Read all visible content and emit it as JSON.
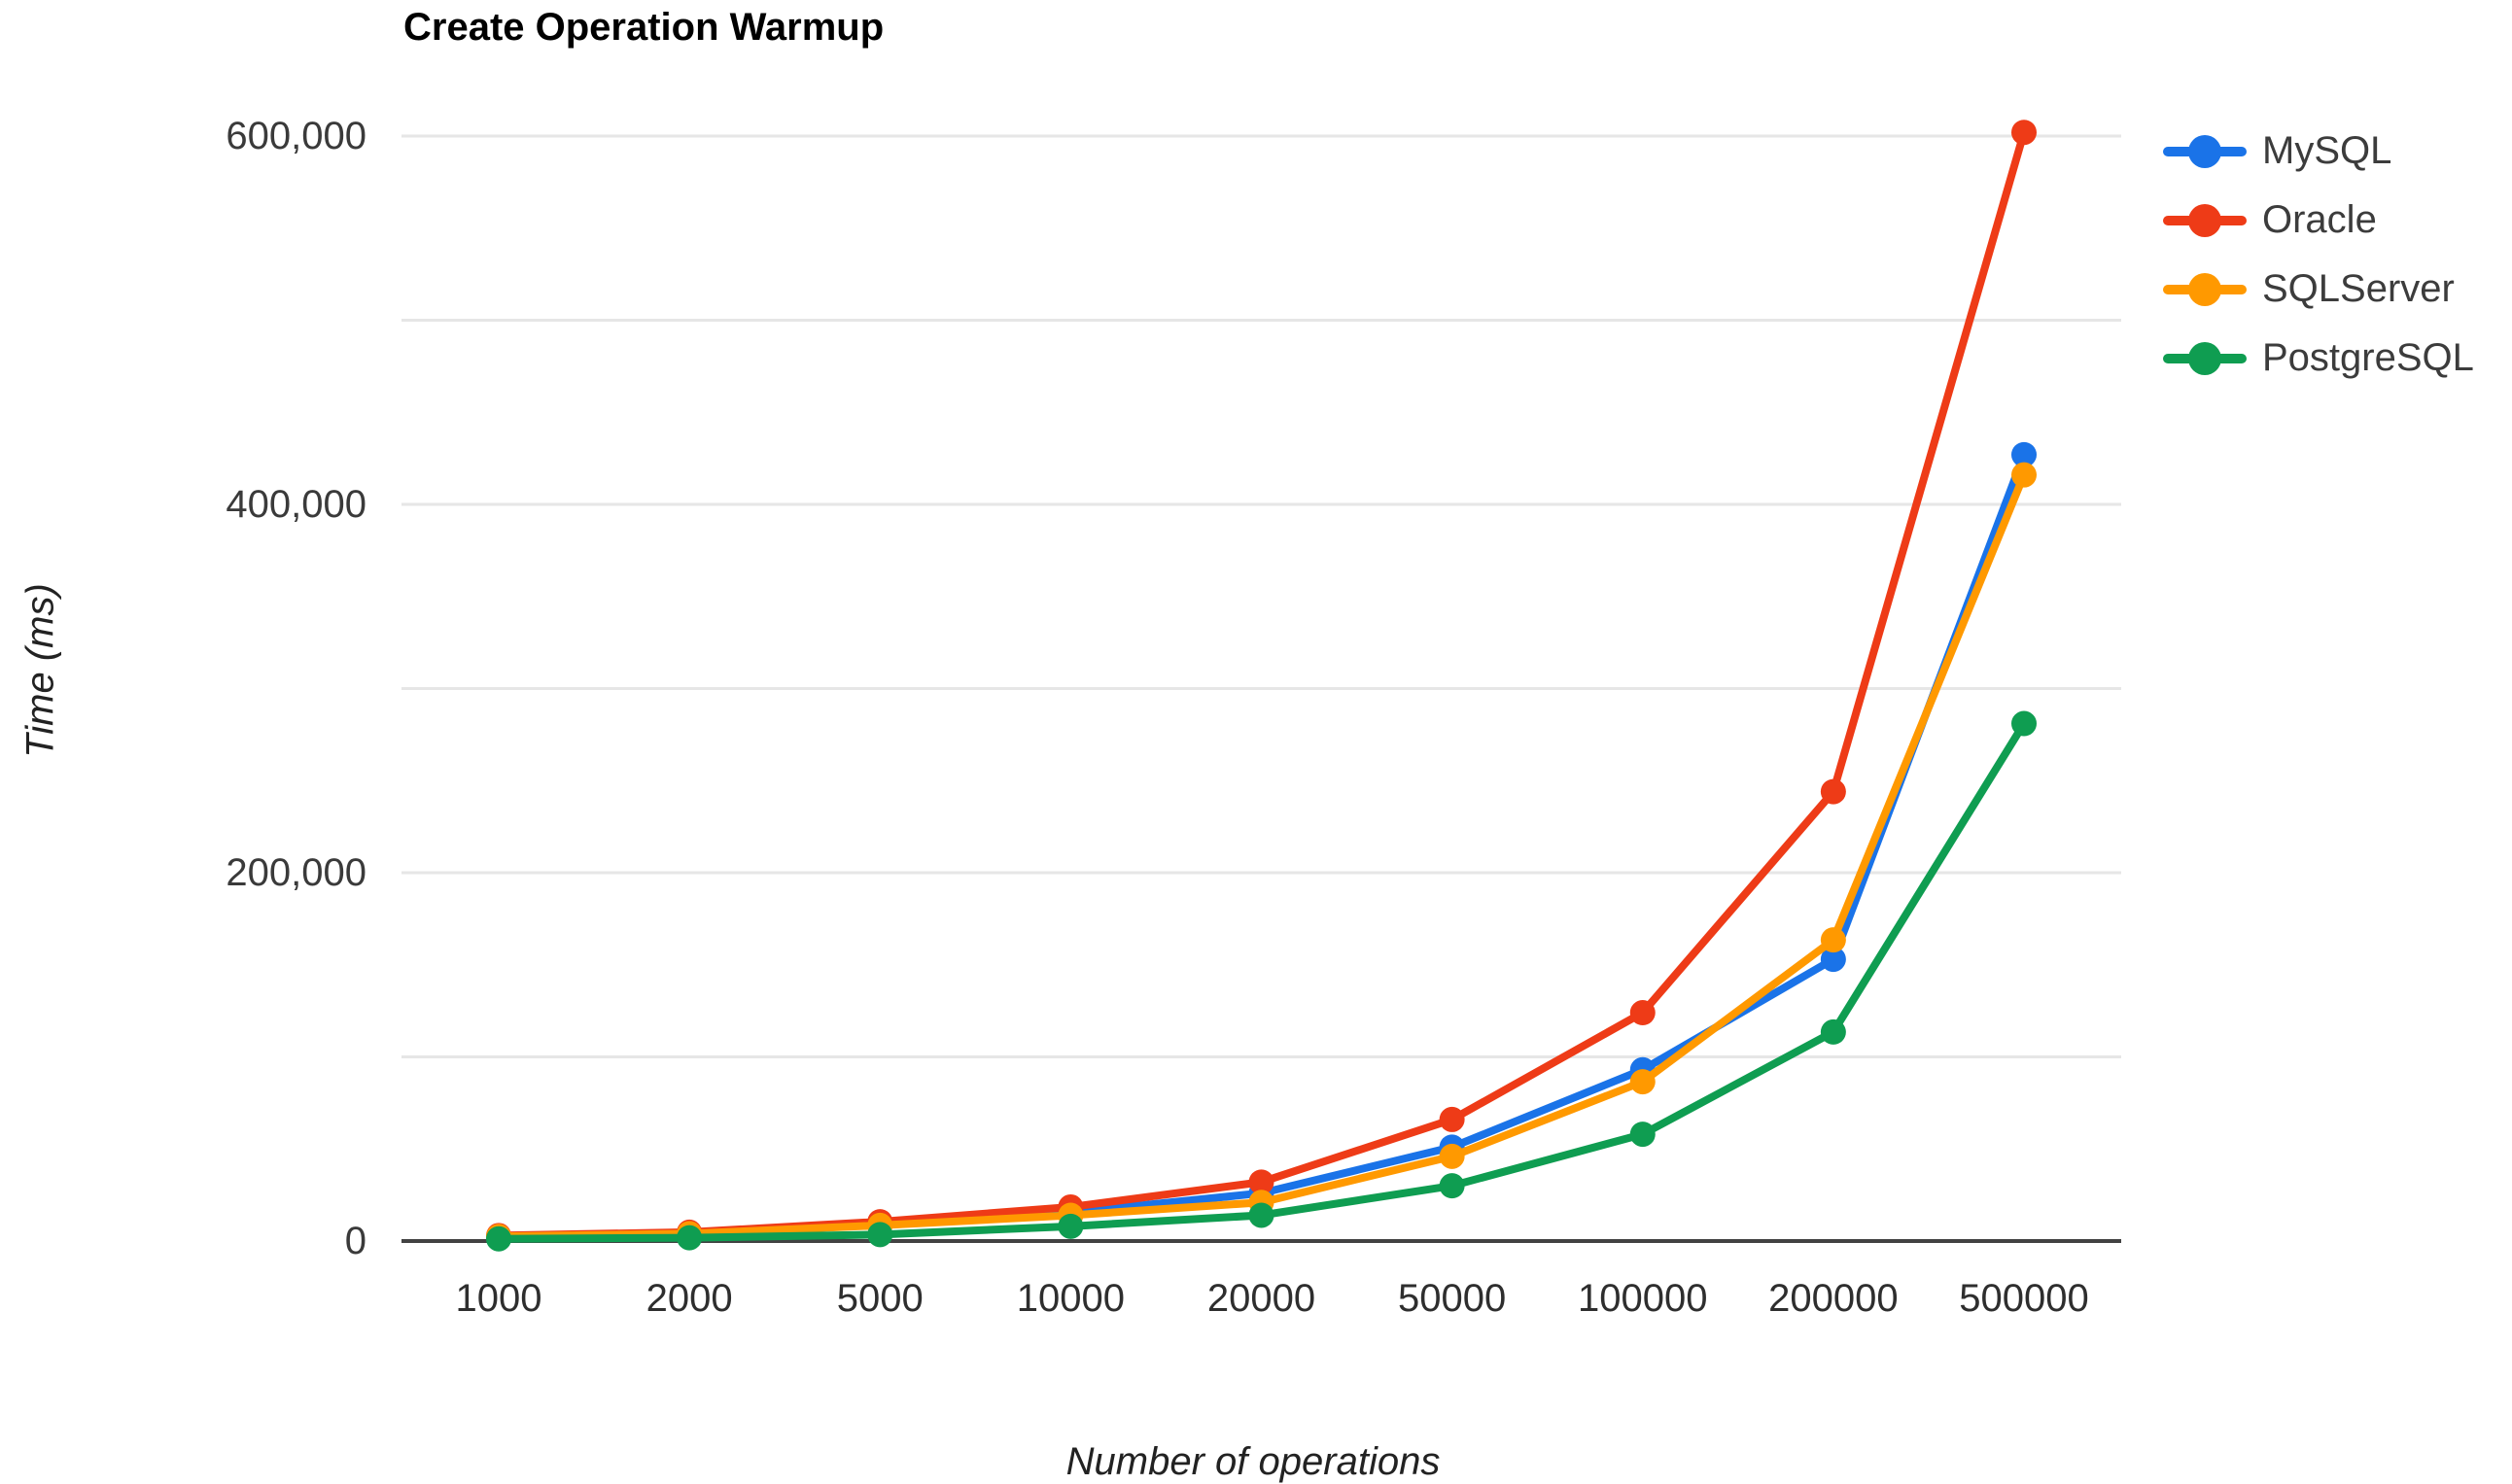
{
  "colors": {
    "background": "#ffffff",
    "gridline": "#e6e6e6",
    "axis_line": "#424242",
    "tick_text": "#3a3a3a",
    "title_text": "#000000",
    "mysql_blue": "#1a73e8",
    "oracle_red": "#ee3b17",
    "sqlserver_orange": "#ff9900",
    "postgresql_green": "#0f9d51"
  },
  "chart_data": {
    "type": "line",
    "title": "Create Operation Warmup",
    "xlabel": "Number of operations",
    "ylabel": "Time (ms)",
    "categories": [
      "1000",
      "2000",
      "5000",
      "10000",
      "20000",
      "50000",
      "100000",
      "200000",
      "500000"
    ],
    "series": [
      {
        "name": "MySQL",
        "color": "#1a73e8",
        "values": [
          2000,
          3200,
          9000,
          15500,
          26000,
          51000,
          93000,
          153000,
          427000
        ]
      },
      {
        "name": "Oracle",
        "color": "#ee3b17",
        "values": [
          3000,
          4800,
          10500,
          18500,
          32000,
          66000,
          124000,
          244000,
          602000
        ]
      },
      {
        "name": "SQLServer",
        "color": "#ff9900",
        "values": [
          2500,
          4000,
          8500,
          14000,
          21000,
          46000,
          86500,
          163500,
          416000
        ]
      },
      {
        "name": "PostgreSQL",
        "color": "#0f9d51",
        "values": [
          1200,
          1800,
          3500,
          8000,
          14000,
          30000,
          58000,
          113500,
          281000
        ]
      }
    ],
    "ylim": [
      0,
      600000
    ],
    "grid_step": 100000,
    "y_ticks": [
      {
        "value": 0,
        "label": "0"
      },
      {
        "value": 200000,
        "label": "200,000"
      },
      {
        "value": 400000,
        "label": "400,000"
      },
      {
        "value": 600000,
        "label": "600,000"
      }
    ],
    "grid": true,
    "legend_position": "right",
    "marker": "circle",
    "line_width": 8,
    "marker_radius": 13
  }
}
